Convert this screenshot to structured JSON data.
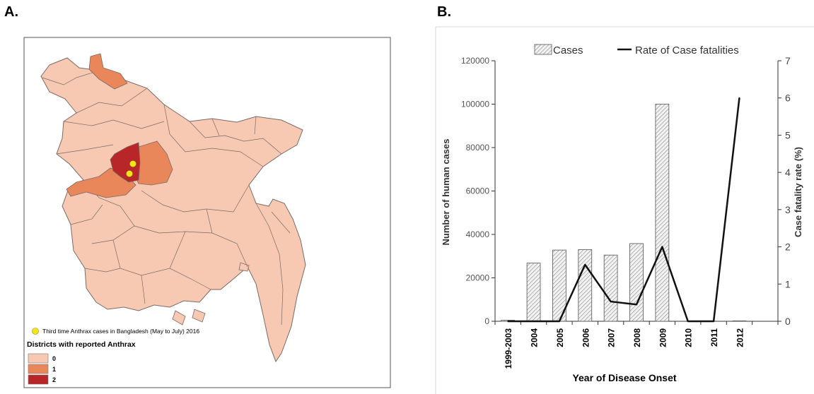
{
  "panels": {
    "a_label": "A.",
    "b_label": "B."
  },
  "map": {
    "marker_note": "Third time Anthrax cases in Bangladesh  (May to July) 2016",
    "legend_title": "Districts with reported Anthrax",
    "legend": [
      {
        "label": "0",
        "color": "#f7c9b3"
      },
      {
        "label": "1",
        "color": "#e9875a"
      },
      {
        "label": "2",
        "color": "#b8262a"
      }
    ],
    "marker_color": "#f2e51b"
  },
  "chart_data": {
    "type": "bar",
    "categories": [
      "1999-2003",
      "2004",
      "2005",
      "2006",
      "2007",
      "2008",
      "2009",
      "2010",
      "2011",
      "2012"
    ],
    "series": [
      {
        "name": "Cases",
        "type": "bar",
        "axis": "left",
        "values": [
          500,
          26800,
          32800,
          33000,
          30500,
          35800,
          100000,
          0,
          0,
          200
        ]
      },
      {
        "name": "Rate of Case fatalities",
        "type": "line",
        "axis": "right",
        "values": [
          0,
          0,
          0,
          1.52,
          0.53,
          0.45,
          2.0,
          0,
          0,
          6.0
        ]
      }
    ],
    "xlabel": "Year of Disease Onset",
    "ylabel": "Number of human cases",
    "y2label": "Case fatality rate (%)",
    "ylim": [
      0,
      120000
    ],
    "y2lim": [
      0,
      7
    ],
    "yticks": [
      "0",
      "20000",
      "40000",
      "60000",
      "80000",
      "100000",
      "120000"
    ],
    "y2ticks": [
      "0",
      "1",
      "2",
      "3",
      "4",
      "5",
      "6",
      "7"
    ],
    "legend_position": "top",
    "grid": false
  }
}
